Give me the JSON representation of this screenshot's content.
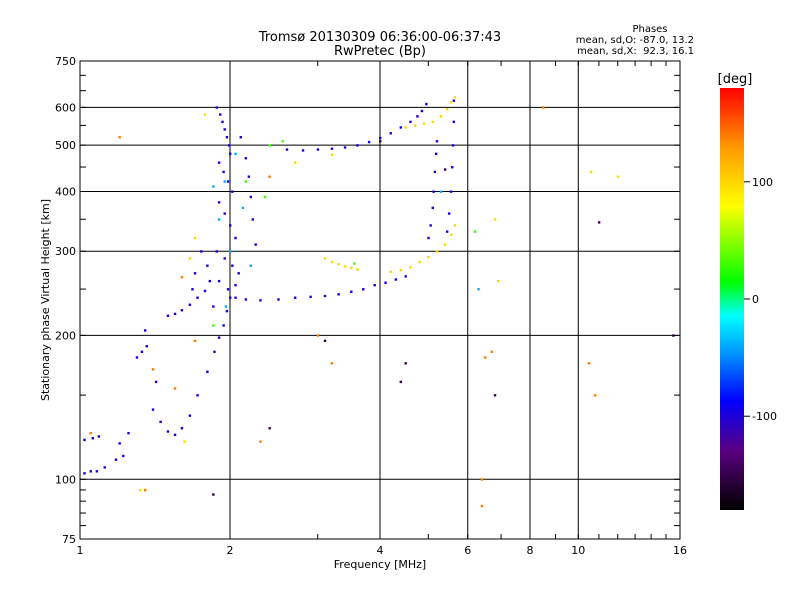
{
  "chart_data": {
    "type": "scatter",
    "title": "Tromsø 20130309 06:36:00-06:37:43",
    "subtitle": "RwPretec (Bp)",
    "xlabel": "Frequency [MHz]",
    "ylabel": "Stationary phase Virtual Height [km]",
    "x_scale": "log",
    "y_scale": "log",
    "xlim": [
      1,
      16
    ],
    "ylim": [
      75,
      750
    ],
    "x_ticks": [
      1,
      2,
      4,
      6,
      8,
      10,
      16
    ],
    "y_ticks": [
      75,
      100,
      200,
      300,
      400,
      500,
      600,
      750
    ],
    "grid": true,
    "phase_info": {
      "title": "Phases",
      "line_o": "mean, sd,O: -87.0, 13.2",
      "line_x": "mean, sd,X:  92.3, 16.1"
    },
    "colorbar": {
      "label": "[deg]",
      "range": [
        -180,
        180
      ],
      "ticks": [
        100,
        0,
        -100
      ]
    },
    "series": [
      {
        "phase": -100,
        "points": [
          [
            1.02,
            103
          ],
          [
            1.05,
            104
          ],
          [
            1.08,
            104
          ],
          [
            1.12,
            106
          ],
          [
            1.18,
            110
          ],
          [
            1.22,
            112
          ],
          [
            1.02,
            121
          ],
          [
            1.06,
            122
          ],
          [
            1.09,
            123
          ],
          [
            1.3,
            180
          ],
          [
            1.33,
            185
          ],
          [
            1.36,
            190
          ],
          [
            1.4,
            140
          ],
          [
            1.45,
            132
          ],
          [
            1.5,
            126
          ],
          [
            1.55,
            124
          ],
          [
            1.6,
            128
          ],
          [
            1.66,
            136
          ],
          [
            1.72,
            150
          ],
          [
            1.8,
            168
          ],
          [
            1.86,
            185
          ],
          [
            1.9,
            198
          ],
          [
            1.94,
            210
          ],
          [
            1.97,
            225
          ],
          [
            2.0,
            240
          ],
          [
            1.5,
            220
          ],
          [
            1.55,
            222
          ],
          [
            1.6,
            226
          ],
          [
            1.66,
            232
          ],
          [
            1.72,
            240
          ],
          [
            1.78,
            248
          ],
          [
            2.05,
            240
          ],
          [
            2.15,
            238
          ],
          [
            2.3,
            237
          ],
          [
            2.5,
            238
          ],
          [
            2.7,
            240
          ],
          [
            2.9,
            241
          ],
          [
            3.1,
            242
          ],
          [
            3.3,
            244
          ],
          [
            3.5,
            247
          ],
          [
            3.7,
            250
          ],
          [
            3.9,
            255
          ],
          [
            4.1,
            258
          ],
          [
            4.3,
            262
          ],
          [
            4.5,
            266
          ],
          [
            2.6,
            490
          ],
          [
            2.8,
            488
          ],
          [
            3.0,
            490
          ],
          [
            3.2,
            492
          ],
          [
            3.4,
            495
          ],
          [
            3.6,
            500
          ],
          [
            3.8,
            508
          ],
          [
            4.0,
            518
          ],
          [
            4.2,
            530
          ],
          [
            4.4,
            545
          ],
          [
            4.6,
            560
          ],
          [
            4.75,
            575
          ],
          [
            4.85,
            590
          ],
          [
            4.95,
            610
          ],
          [
            5.0,
            320
          ],
          [
            5.05,
            340
          ],
          [
            5.1,
            370
          ],
          [
            5.12,
            400
          ],
          [
            5.15,
            440
          ],
          [
            5.18,
            480
          ],
          [
            5.2,
            510
          ],
          [
            5.45,
            330
          ],
          [
            5.5,
            360
          ],
          [
            5.55,
            400
          ],
          [
            5.58,
            450
          ],
          [
            5.6,
            500
          ],
          [
            5.62,
            560
          ],
          [
            5.62,
            620
          ],
          [
            1.88,
            600
          ],
          [
            1.91,
            580
          ],
          [
            1.93,
            560
          ],
          [
            1.95,
            540
          ],
          [
            1.97,
            520
          ],
          [
            1.99,
            500
          ],
          [
            2.0,
            480
          ],
          [
            1.9,
            460
          ],
          [
            1.94,
            440
          ],
          [
            1.98,
            420
          ],
          [
            2.02,
            400
          ],
          [
            1.9,
            380
          ],
          [
            1.95,
            360
          ],
          [
            2.0,
            340
          ],
          [
            2.05,
            320
          ],
          [
            1.88,
            300
          ],
          [
            1.95,
            290
          ],
          [
            2.02,
            280
          ],
          [
            2.08,
            270
          ],
          [
            1.9,
            260
          ],
          [
            1.98,
            250
          ],
          [
            2.05,
            255
          ],
          [
            2.1,
            520
          ],
          [
            2.15,
            470
          ],
          [
            2.18,
            430
          ],
          [
            2.2,
            390
          ],
          [
            2.22,
            350
          ],
          [
            2.25,
            310
          ],
          [
            1.75,
            300
          ],
          [
            1.8,
            280
          ],
          [
            1.82,
            260
          ],
          [
            1.7,
            270
          ],
          [
            1.68,
            250
          ],
          [
            1.85,
            230
          ],
          [
            1.2,
            119
          ],
          [
            1.25,
            125
          ],
          [
            1.35,
            205
          ],
          [
            1.42,
            160
          ]
        ]
      },
      {
        "phase": 100,
        "points": [
          [
            3.1,
            290
          ],
          [
            3.2,
            285
          ],
          [
            3.3,
            282
          ],
          [
            3.4,
            279
          ],
          [
            3.5,
            277
          ],
          [
            3.6,
            275
          ],
          [
            4.2,
            272
          ],
          [
            4.4,
            274
          ],
          [
            4.6,
            278
          ],
          [
            4.8,
            285
          ],
          [
            5.0,
            292
          ],
          [
            5.2,
            300
          ],
          [
            5.4,
            310
          ],
          [
            5.55,
            325
          ],
          [
            5.65,
            340
          ],
          [
            4.5,
            545
          ],
          [
            4.7,
            550
          ],
          [
            4.9,
            555
          ],
          [
            5.1,
            560
          ],
          [
            5.3,
            575
          ],
          [
            5.45,
            595
          ],
          [
            5.55,
            615
          ],
          [
            5.65,
            630
          ],
          [
            1.78,
            580
          ],
          [
            1.7,
            320
          ],
          [
            1.66,
            290
          ],
          [
            2.7,
            460
          ],
          [
            3.2,
            478
          ],
          [
            1.32,
            95
          ],
          [
            1.62,
            120
          ],
          [
            10.6,
            440
          ],
          [
            12.0,
            430
          ],
          [
            6.8,
            350
          ],
          [
            6.9,
            260
          ]
        ]
      },
      {
        "phase": 30,
        "points": [
          [
            2.4,
            500
          ],
          [
            2.55,
            510
          ],
          [
            2.35,
            390
          ],
          [
            1.85,
            210
          ],
          [
            2.15,
            420
          ],
          [
            6.2,
            330
          ],
          [
            3.55,
            283
          ]
        ]
      },
      {
        "phase": -40,
        "points": [
          [
            1.9,
            350
          ],
          [
            1.95,
            420
          ],
          [
            2.0,
            300
          ],
          [
            2.05,
            480
          ],
          [
            2.12,
            370
          ],
          [
            2.2,
            280
          ],
          [
            1.85,
            410
          ],
          [
            1.96,
            230
          ],
          [
            6.3,
            250
          ],
          [
            5.3,
            400
          ]
        ]
      },
      {
        "phase": 140,
        "points": [
          [
            1.2,
            520
          ],
          [
            1.35,
            95
          ],
          [
            1.4,
            170
          ],
          [
            1.55,
            155
          ],
          [
            1.6,
            265
          ],
          [
            1.7,
            195
          ],
          [
            3.0,
            200
          ],
          [
            3.2,
            175
          ],
          [
            6.4,
            100
          ],
          [
            6.4,
            88
          ],
          [
            6.5,
            180
          ],
          [
            6.7,
            185
          ],
          [
            8.5,
            600
          ],
          [
            10.5,
            175
          ],
          [
            10.8,
            150
          ],
          [
            2.3,
            120
          ],
          [
            2.4,
            430
          ],
          [
            1.05,
            125
          ]
        ]
      },
      {
        "phase": -150,
        "points": [
          [
            1.85,
            93
          ],
          [
            2.4,
            128
          ],
          [
            3.1,
            195
          ],
          [
            4.4,
            160
          ],
          [
            4.5,
            175
          ],
          [
            6.8,
            150
          ],
          [
            11.0,
            345
          ],
          [
            15.5,
            200
          ],
          [
            4.0,
            510
          ],
          [
            5.4,
            445
          ]
        ]
      }
    ]
  }
}
